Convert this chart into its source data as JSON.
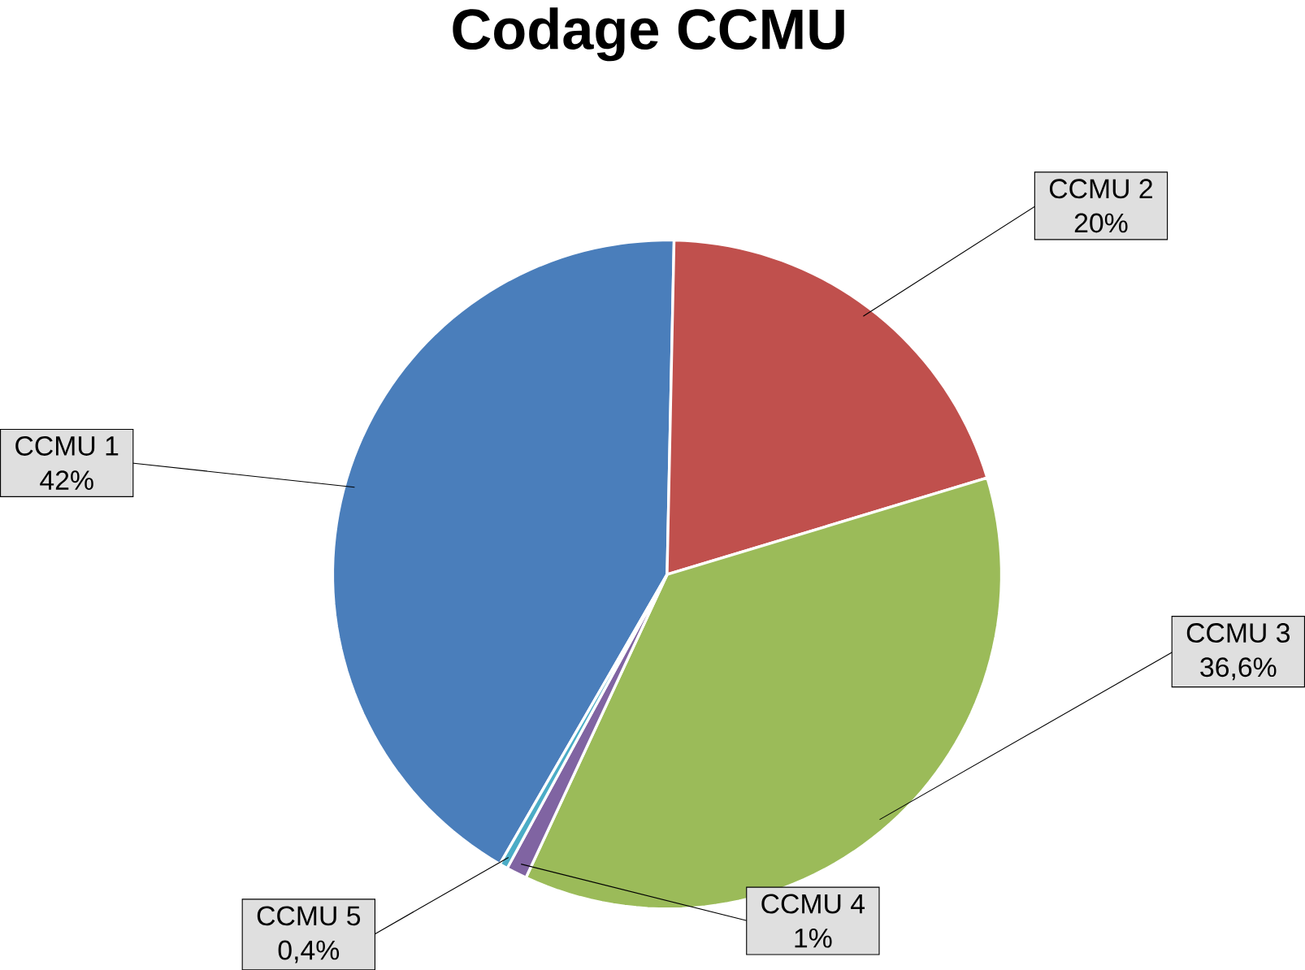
{
  "chart_data": {
    "type": "pie",
    "title": "Codage CCMU",
    "categories": [
      "CCMU 1",
      "CCMU 2",
      "CCMU 3",
      "CCMU 4",
      "CCMU 5"
    ],
    "values": [
      42,
      20,
      36.6,
      1,
      0.4
    ],
    "value_labels": [
      "42%",
      "20%",
      "36,6%",
      "1%",
      "0,4%"
    ],
    "colors": [
      "#4a7ebb",
      "#c0504d",
      "#9bbb59",
      "#8064a2",
      "#4bacc6"
    ]
  }
}
